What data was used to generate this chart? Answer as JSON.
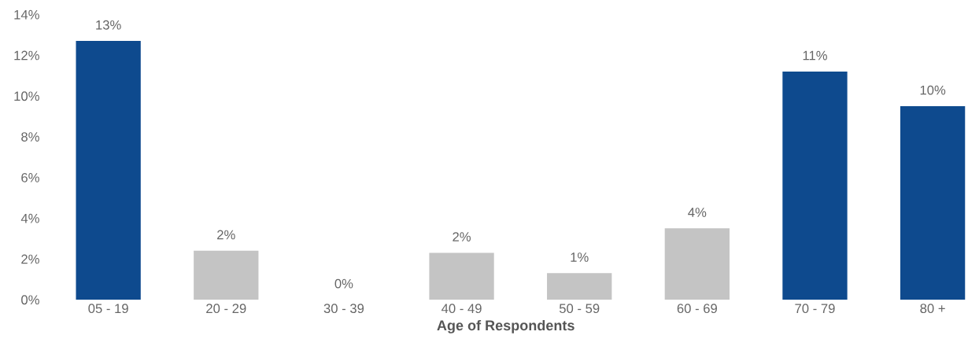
{
  "chart_data": {
    "type": "bar",
    "xlabel": "Age of Respondents",
    "categories": [
      "05 - 19",
      "20 - 29",
      "30 - 39",
      "40 - 49",
      "50 - 59",
      "60 - 69",
      "70 - 79",
      "80 +"
    ],
    "values": [
      12.7,
      2.4,
      0,
      2.3,
      1.3,
      3.5,
      11.2,
      9.5
    ],
    "colors": [
      "#0e4a8e",
      "#c4c4c4",
      "#c4c4c4",
      "#c4c4c4",
      "#c4c4c4",
      "#c4c4c4",
      "#0e4a8e",
      "#0e4a8e"
    ],
    "value_labels": [
      "13%",
      "2%",
      "0%",
      "2%",
      "1%",
      "4%",
      "11%",
      "10%"
    ],
    "ylim": [
      0,
      14
    ],
    "yticks": [
      {
        "value": 0,
        "label": "0%"
      },
      {
        "value": 2,
        "label": "2%"
      },
      {
        "value": 4,
        "label": "4%"
      },
      {
        "value": 6,
        "label": "6%"
      },
      {
        "value": 8,
        "label": "8%"
      },
      {
        "value": 10,
        "label": "10%"
      },
      {
        "value": 12,
        "label": "12%"
      },
      {
        "value": 14,
        "label": "14%"
      }
    ],
    "grid": false,
    "legend": false
  }
}
